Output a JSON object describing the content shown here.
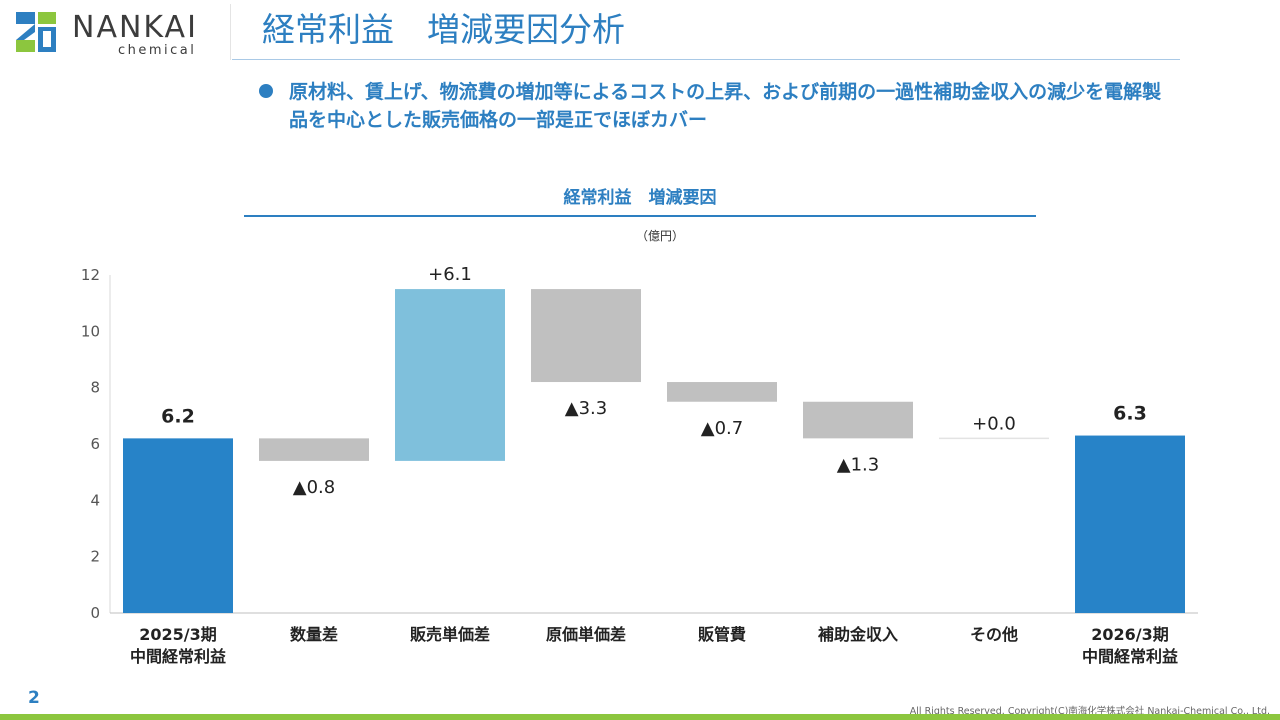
{
  "header": {
    "logo_name": "NANKAI",
    "logo_sub": "chemical",
    "title": "経常利益　増減要因分析"
  },
  "bullet": {
    "text": "原材料、賃上げ、物流費の増加等によるコストの上昇、および前期の一過性補助金収入の減少を電解製品を中心とした販売価格の一部是正でほぼカバー"
  },
  "chart_title": "経常利益　増減要因",
  "unit": "（億円）",
  "footer": {
    "page_number": "2",
    "copyright": "All Rights Reserved. Copyright(C)南海化学株式会社 Nankai-Chemical Co., Ltd."
  },
  "colors": {
    "accent": "#2d7fc1",
    "total_bar": "#2783c8",
    "increase_bar": "#7fc0dc",
    "decrease_bar": "#c0c0c0",
    "bottom_band": "#8cc63e"
  },
  "chart_data": {
    "type": "waterfall",
    "ylim": [
      0,
      12
    ],
    "yticks": [
      0,
      2,
      4,
      6,
      8,
      10,
      12
    ],
    "categories": [
      [
        "2025/3期",
        "中間経常利益"
      ],
      [
        "数量差"
      ],
      [
        "販売単価差"
      ],
      [
        "原価単価差"
      ],
      [
        "販管費"
      ],
      [
        "補助金収入"
      ],
      [
        "その他"
      ],
      [
        "2026/3期",
        "中間経常利益"
      ]
    ],
    "bars": [
      {
        "kind": "total",
        "start": 0,
        "end": 6.2,
        "label": "6.2"
      },
      {
        "kind": "decrease",
        "start": 6.2,
        "end": 5.4,
        "label": "▲0.8"
      },
      {
        "kind": "increase",
        "start": 5.4,
        "end": 11.5,
        "label": "+6.1"
      },
      {
        "kind": "decrease",
        "start": 11.5,
        "end": 8.2,
        "label": "▲3.3"
      },
      {
        "kind": "decrease",
        "start": 8.2,
        "end": 7.5,
        "label": "▲0.7"
      },
      {
        "kind": "decrease",
        "start": 7.5,
        "end": 6.2,
        "label": "▲1.3"
      },
      {
        "kind": "flat",
        "start": 6.2,
        "end": 6.2,
        "label": "+0.0"
      },
      {
        "kind": "total",
        "start": 0,
        "end": 6.3,
        "label": "6.3"
      }
    ]
  }
}
